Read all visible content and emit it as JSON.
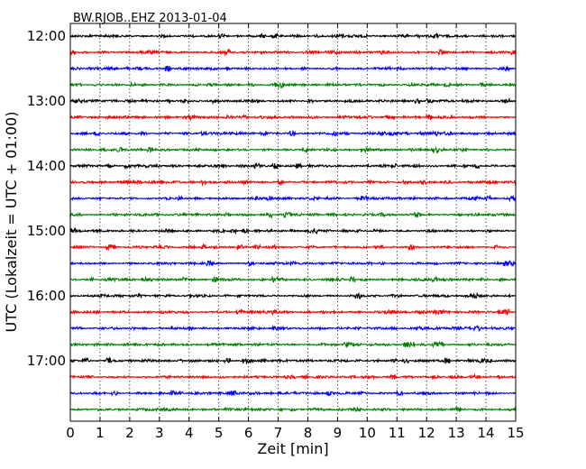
{
  "chart_data": {
    "type": "line",
    "title": "BW.RJOB..EHZ 2013-01-04",
    "xlabel": "Zeit  [min]",
    "ylabel": "UTC (Lokalzeit = UTC + 01:00)",
    "xlim": [
      0,
      15
    ],
    "x_ticks": [
      "0",
      "1",
      "2",
      "3",
      "4",
      "5",
      "6",
      "7",
      "8",
      "9",
      "10",
      "11",
      "12",
      "13",
      "14",
      "15"
    ],
    "y_tick_labels": [
      "12:00",
      "13:00",
      "14:00",
      "15:00",
      "16:00",
      "17:00"
    ],
    "grid": "vertical-dotted",
    "series_colors": [
      "#000000",
      "#ff0000",
      "#0000ff",
      "#008000"
    ],
    "trace_start_times": [
      "12:00",
      "12:15",
      "12:30",
      "12:45",
      "13:00",
      "13:15",
      "13:30",
      "13:45",
      "14:00",
      "14:15",
      "14:30",
      "14:45",
      "15:00",
      "15:15",
      "15:30",
      "15:45",
      "16:00",
      "16:15",
      "16:30",
      "16:45",
      "17:00",
      "17:15",
      "17:30",
      "17:45"
    ],
    "trace_duration_min": 15
  }
}
